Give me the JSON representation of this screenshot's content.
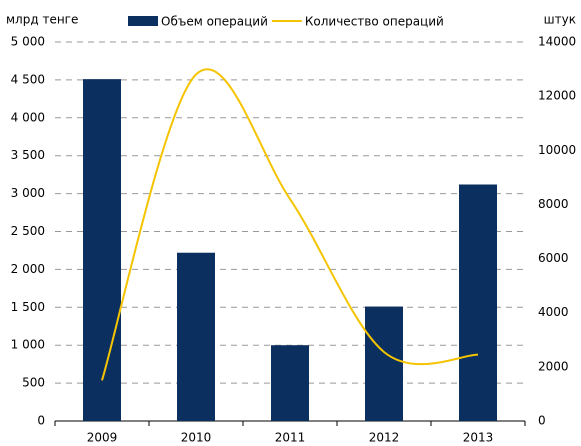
{
  "chart_data": {
    "type": "bar-line",
    "y_label": "млрд тенге",
    "y2_label": "штук",
    "categories": [
      "2009",
      "2010",
      "2011",
      "2012",
      "2013"
    ],
    "series": [
      {
        "name": "Объем операций",
        "type": "bar",
        "color": "#0b2f5e",
        "values": [
          4510,
          2220,
          1000,
          1510,
          3120
        ]
      },
      {
        "name": "Количество операций",
        "type": "line",
        "axis": "y2",
        "color": "#f5c400",
        "smooth": true,
        "values": [
          1500,
          12800,
          8200,
          2550,
          2450
        ]
      }
    ],
    "ylim": [
      0,
      5000
    ],
    "yticks": [
      0,
      500,
      {
        "value": 1000,
        "label": "1 000"
      },
      {
        "value": 1500,
        "label": "1 500"
      },
      {
        "value": 2000,
        "label": "2 000"
      },
      {
        "value": 2500,
        "label": "2 500"
      },
      {
        "value": 3000,
        "label": "3 000"
      },
      {
        "value": 3500,
        "label": "3 500"
      },
      {
        "value": 4000,
        "label": "4 000"
      },
      {
        "value": 4500,
        "label": "4 500"
      },
      {
        "value": 5000,
        "label": "5 000"
      }
    ],
    "y2lim": [
      0,
      14000
    ],
    "y2ticks": [
      0,
      2000,
      4000,
      6000,
      8000,
      10000,
      12000,
      14000
    ],
    "grid": true,
    "legend": "top"
  }
}
